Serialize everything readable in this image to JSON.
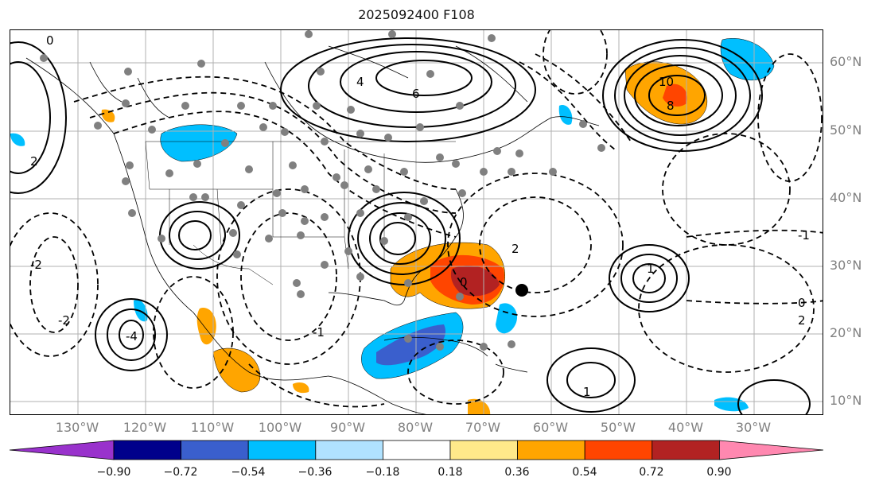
{
  "title": "2025092400 F108",
  "lon_labels": [
    "130°W",
    "120°W",
    "110°W",
    "100°W",
    "90°W",
    "80°W",
    "70°W",
    "60°W",
    "50°W",
    "40°W",
    "30°W"
  ],
  "lat_labels": [
    "60°N",
    "50°N",
    "40°N",
    "30°N",
    "20°N",
    "10°N"
  ],
  "colorbar": {
    "ticks": [
      "−0.90",
      "−0.72",
      "−0.54",
      "−0.36",
      "−0.18",
      "0.18",
      "0.36",
      "0.54",
      "0.72",
      "0.90"
    ],
    "colors": [
      "#9932cc",
      "#00008b",
      "#3a5fcd",
      "#00bfff",
      "#b0e2ff",
      "#ffffff",
      "#ffe98a",
      "#ffa500",
      "#ff4500",
      "#b22222",
      "#ff88b0"
    ]
  },
  "contour_labels": [
    "0",
    "2",
    "4",
    "6",
    "-2",
    "-1",
    "1",
    "10",
    "8",
    "2",
    "-4",
    "0",
    "-1",
    "1",
    "2",
    "-2",
    "0"
  ],
  "colors": {
    "warm": "#ffa500",
    "hot": "#ff4500",
    "red": "#b22222",
    "cool": "#00bfff",
    "blue": "#3a5fcd",
    "grid": "#b0b0b0",
    "station": "#808080"
  }
}
